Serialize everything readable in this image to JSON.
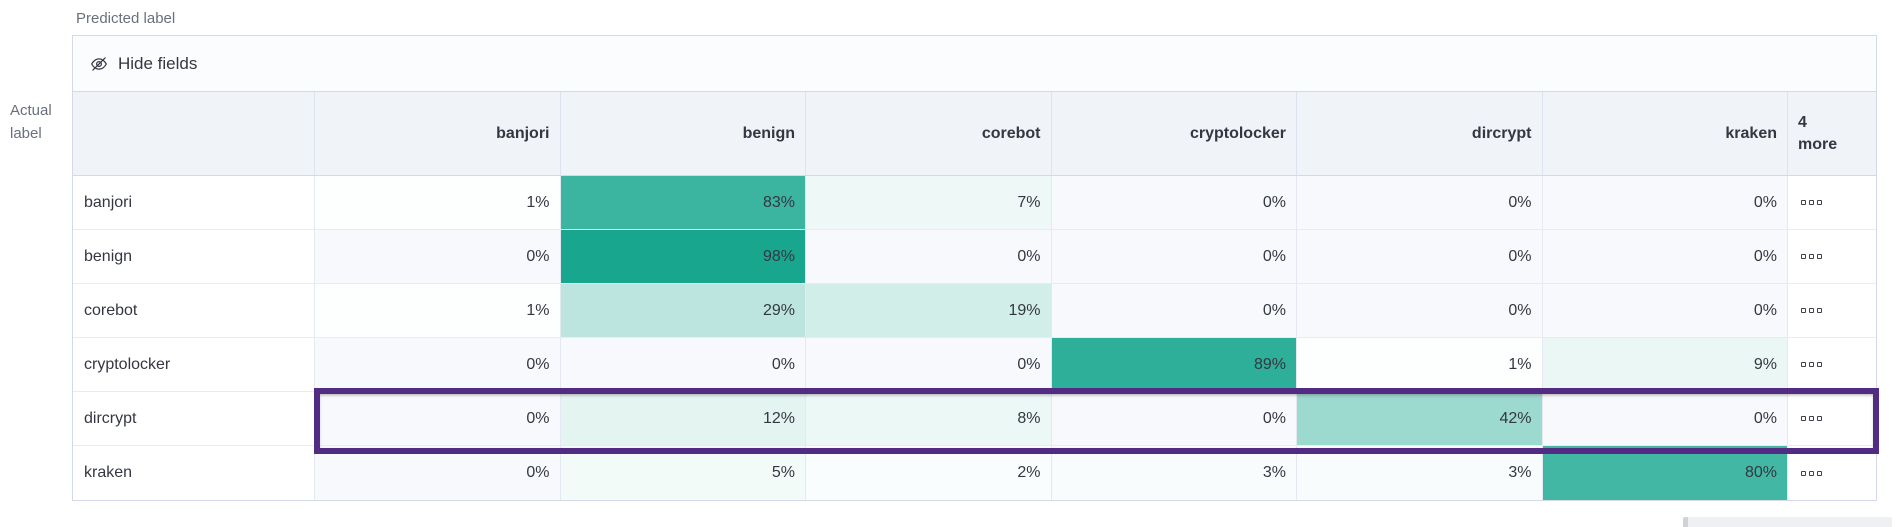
{
  "axes": {
    "predicted_label": "Predicted label",
    "actual_label": "Actual label"
  },
  "toolbar": {
    "hide_fields_label": "Hide fields",
    "hide_fields_icon": "eye-closed-icon"
  },
  "chart_data": {
    "type": "heatmap",
    "unit": "%",
    "columns": [
      "banjori",
      "benign",
      "corebot",
      "cryptolocker",
      "dircrypt",
      "kraken"
    ],
    "more_columns_label": "4 more",
    "rows": [
      {
        "label": "banjori",
        "values": [
          1,
          83,
          7,
          0,
          0,
          0
        ]
      },
      {
        "label": "benign",
        "values": [
          0,
          98,
          0,
          0,
          0,
          0
        ]
      },
      {
        "label": "corebot",
        "values": [
          1,
          29,
          19,
          0,
          0,
          0
        ]
      },
      {
        "label": "cryptolocker",
        "values": [
          0,
          0,
          0,
          89,
          1,
          9
        ]
      },
      {
        "label": "dircrypt",
        "values": [
          0,
          12,
          8,
          0,
          42,
          0
        ]
      },
      {
        "label": "kraken",
        "values": [
          0,
          5,
          2,
          3,
          3,
          80
        ]
      }
    ],
    "row_action_icon": "boxes-horizontal-icon",
    "highlight": {
      "row": "dircrypt",
      "color": "#522b82"
    },
    "colors": {
      "cell_base_teal": "rgb(19,165,140)",
      "zero_cell": "#f7f9fc",
      "header_bg": "#f0f3f8",
      "text": "#343741",
      "muted_text": "#69707d"
    },
    "legend_position": "none",
    "grid": "on"
  }
}
